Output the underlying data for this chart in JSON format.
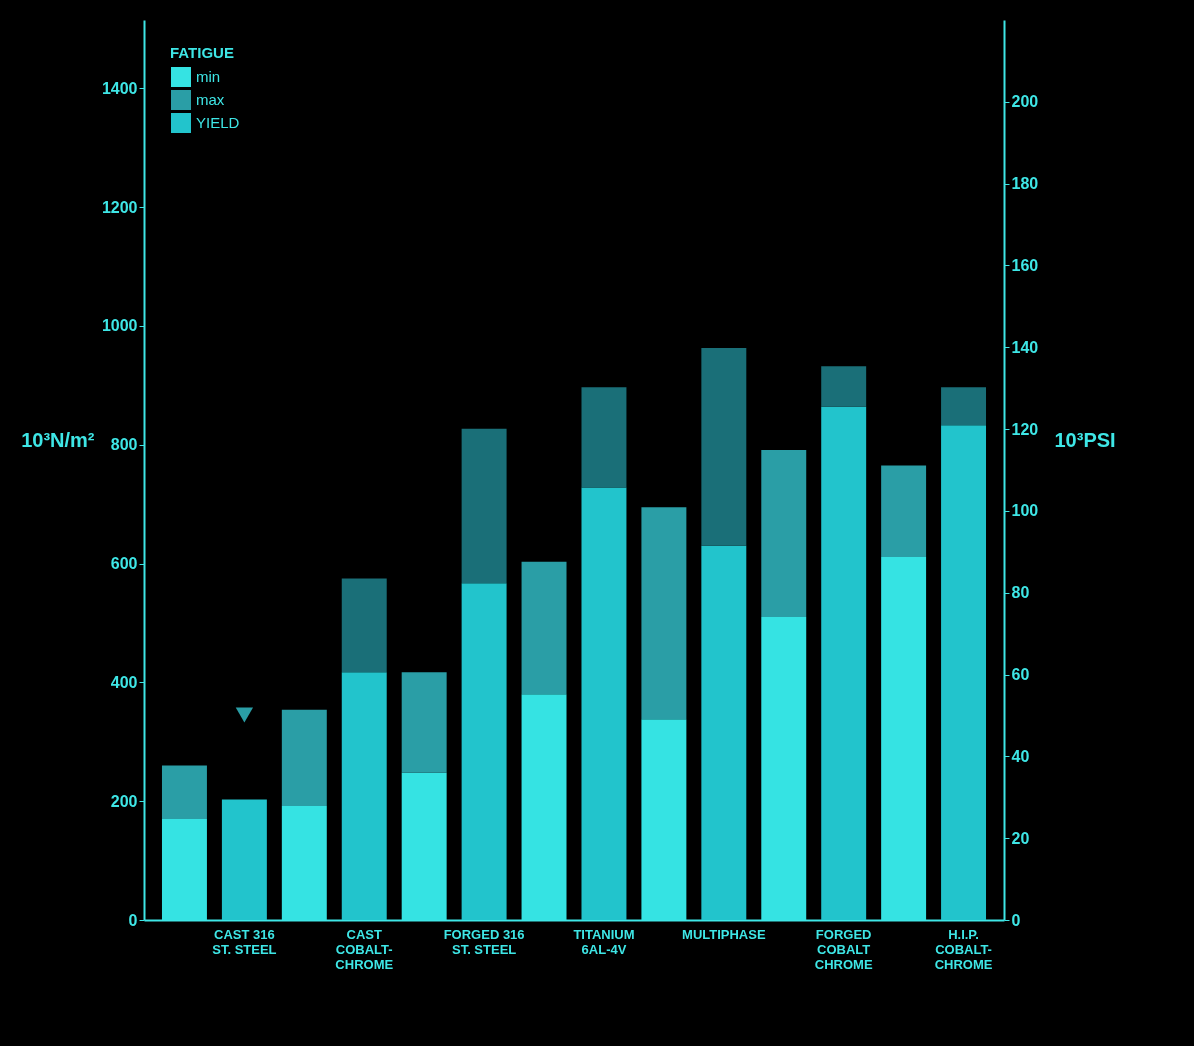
{
  "chart_data": {
    "type": "bar",
    "stacked": true,
    "categories": [
      null,
      "CAST 316\nST. STEEL",
      null,
      "CAST\nCOBALT-\nCHROME",
      null,
      "FORGED 316\nST. STEEL",
      null,
      "TITANIUM\n6AL-4V",
      null,
      "MULTIPHASE",
      null,
      "FORGED\nCOBALT\nCHROME",
      null,
      "H.I.P.\nCOBALT-\nCHROME"
    ],
    "ylabel": "10³N/m²",
    "y2label": "10³PSI",
    "legend_title": "FATIGUE",
    "legend": "top left",
    "grid": false,
    "ylim": [
      0,
      1515
    ],
    "yticks": [
      0,
      200,
      400,
      600,
      800,
      1000,
      1200,
      1400
    ],
    "y2lim": [
      0,
      220
    ],
    "y2ticks": [
      0,
      20,
      40,
      60,
      80,
      100,
      120,
      140,
      160,
      180,
      200
    ],
    "series": [
      {
        "name": "min",
        "color": "#35e3e3",
        "values": [
          170,
          null,
          192,
          null,
          248,
          null,
          380,
          null,
          338,
          null,
          510,
          null,
          611,
          null
        ]
      },
      {
        "name": "max",
        "color": "#2a9ea6",
        "values": [
          90,
          null,
          162,
          null,
          169,
          null,
          223,
          null,
          357,
          null,
          281,
          null,
          154,
          null
        ]
      },
      {
        "name": "YIELD",
        "color": "#22c4cc",
        "values": [
          null,
          203,
          null,
          417,
          null,
          567,
          null,
          728,
          null,
          630,
          null,
          864,
          null,
          833
        ]
      },
      {
        "color": "#1a6f78",
        "values": [
          null,
          null,
          null,
          158,
          null,
          260,
          null,
          169,
          null,
          333,
          null,
          68,
          null,
          64
        ]
      },
      {
        "type": "scatter",
        "marker": "triangle",
        "color": "#2a9ea6",
        "x": [
          "CAST 316\nST. STEEL"
        ],
        "values": [
          345
        ]
      }
    ]
  }
}
